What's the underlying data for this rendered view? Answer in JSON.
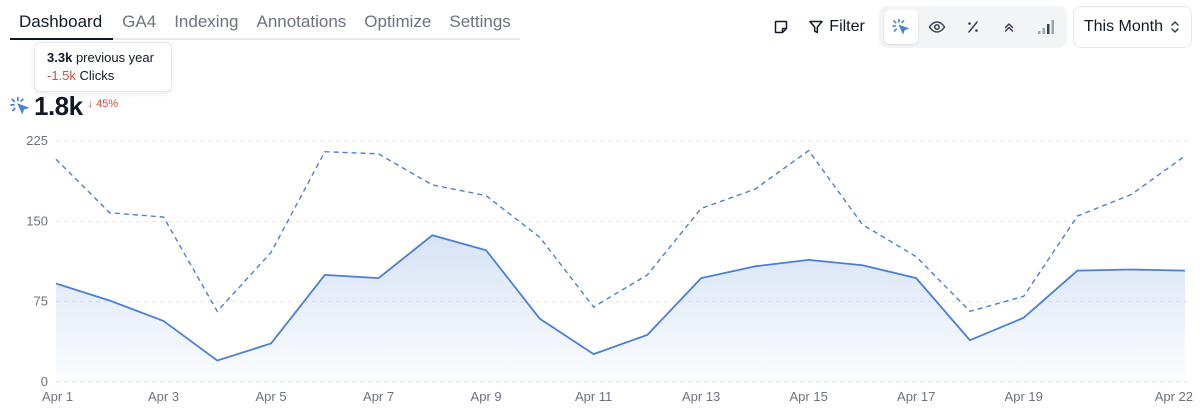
{
  "tabs": [
    {
      "label": "Dashboard",
      "active": true
    },
    {
      "label": "GA4",
      "active": false
    },
    {
      "label": "Indexing",
      "active": false
    },
    {
      "label": "Annotations",
      "active": false
    },
    {
      "label": "Optimize",
      "active": false
    },
    {
      "label": "Settings",
      "active": false
    }
  ],
  "toolbar": {
    "filter_label": "Filter",
    "period_label": "This Month",
    "metrics": [
      {
        "icon": "cursor-click-icon",
        "active": true
      },
      {
        "icon": "eye-icon",
        "active": false
      },
      {
        "icon": "percent-icon",
        "active": false
      },
      {
        "icon": "chevrons-up-icon",
        "active": false
      },
      {
        "icon": "bar-signal-icon",
        "active": false
      }
    ]
  },
  "tooltip": {
    "prev_value": "3.3k",
    "prev_label": "previous year",
    "diff_value": "-1.5k",
    "diff_label": "Clicks"
  },
  "kpi": {
    "value": "1.8k",
    "change": "45%"
  },
  "colors": {
    "accent": "#4a7fd6",
    "negative": "#dc4a3b"
  },
  "chart_data": {
    "type": "area",
    "x": [
      "Apr 1",
      "Apr 2",
      "Apr 3",
      "Apr 4",
      "Apr 5",
      "Apr 6",
      "Apr 7",
      "Apr 8",
      "Apr 9",
      "Apr 10",
      "Apr 11",
      "Apr 12",
      "Apr 13",
      "Apr 14",
      "Apr 15",
      "Apr 16",
      "Apr 17",
      "Apr 18",
      "Apr 19",
      "Apr 20",
      "Apr 21",
      "Apr 22"
    ],
    "x_tick_labels": [
      "Apr 1",
      "Apr 3",
      "Apr 5",
      "Apr 7",
      "Apr 9",
      "Apr 11",
      "Apr 13",
      "Apr 15",
      "Apr 17",
      "Apr 19",
      "Apr 22"
    ],
    "y_ticks": [
      "0",
      "75",
      "150",
      "225"
    ],
    "ylim": [
      0,
      225
    ],
    "series": [
      {
        "style": "solid",
        "values": [
          92,
          76,
          57,
          20,
          36,
          100,
          97,
          137,
          123,
          59,
          26,
          44,
          97,
          108,
          114,
          109,
          97,
          39,
          60,
          104,
          105,
          104
        ]
      },
      {
        "style": "dashed",
        "values": [
          208,
          158,
          154,
          66,
          121,
          215,
          213,
          184,
          174,
          135,
          70,
          100,
          162,
          180,
          216,
          147,
          117,
          66,
          80,
          155,
          175,
          211
        ]
      }
    ]
  }
}
